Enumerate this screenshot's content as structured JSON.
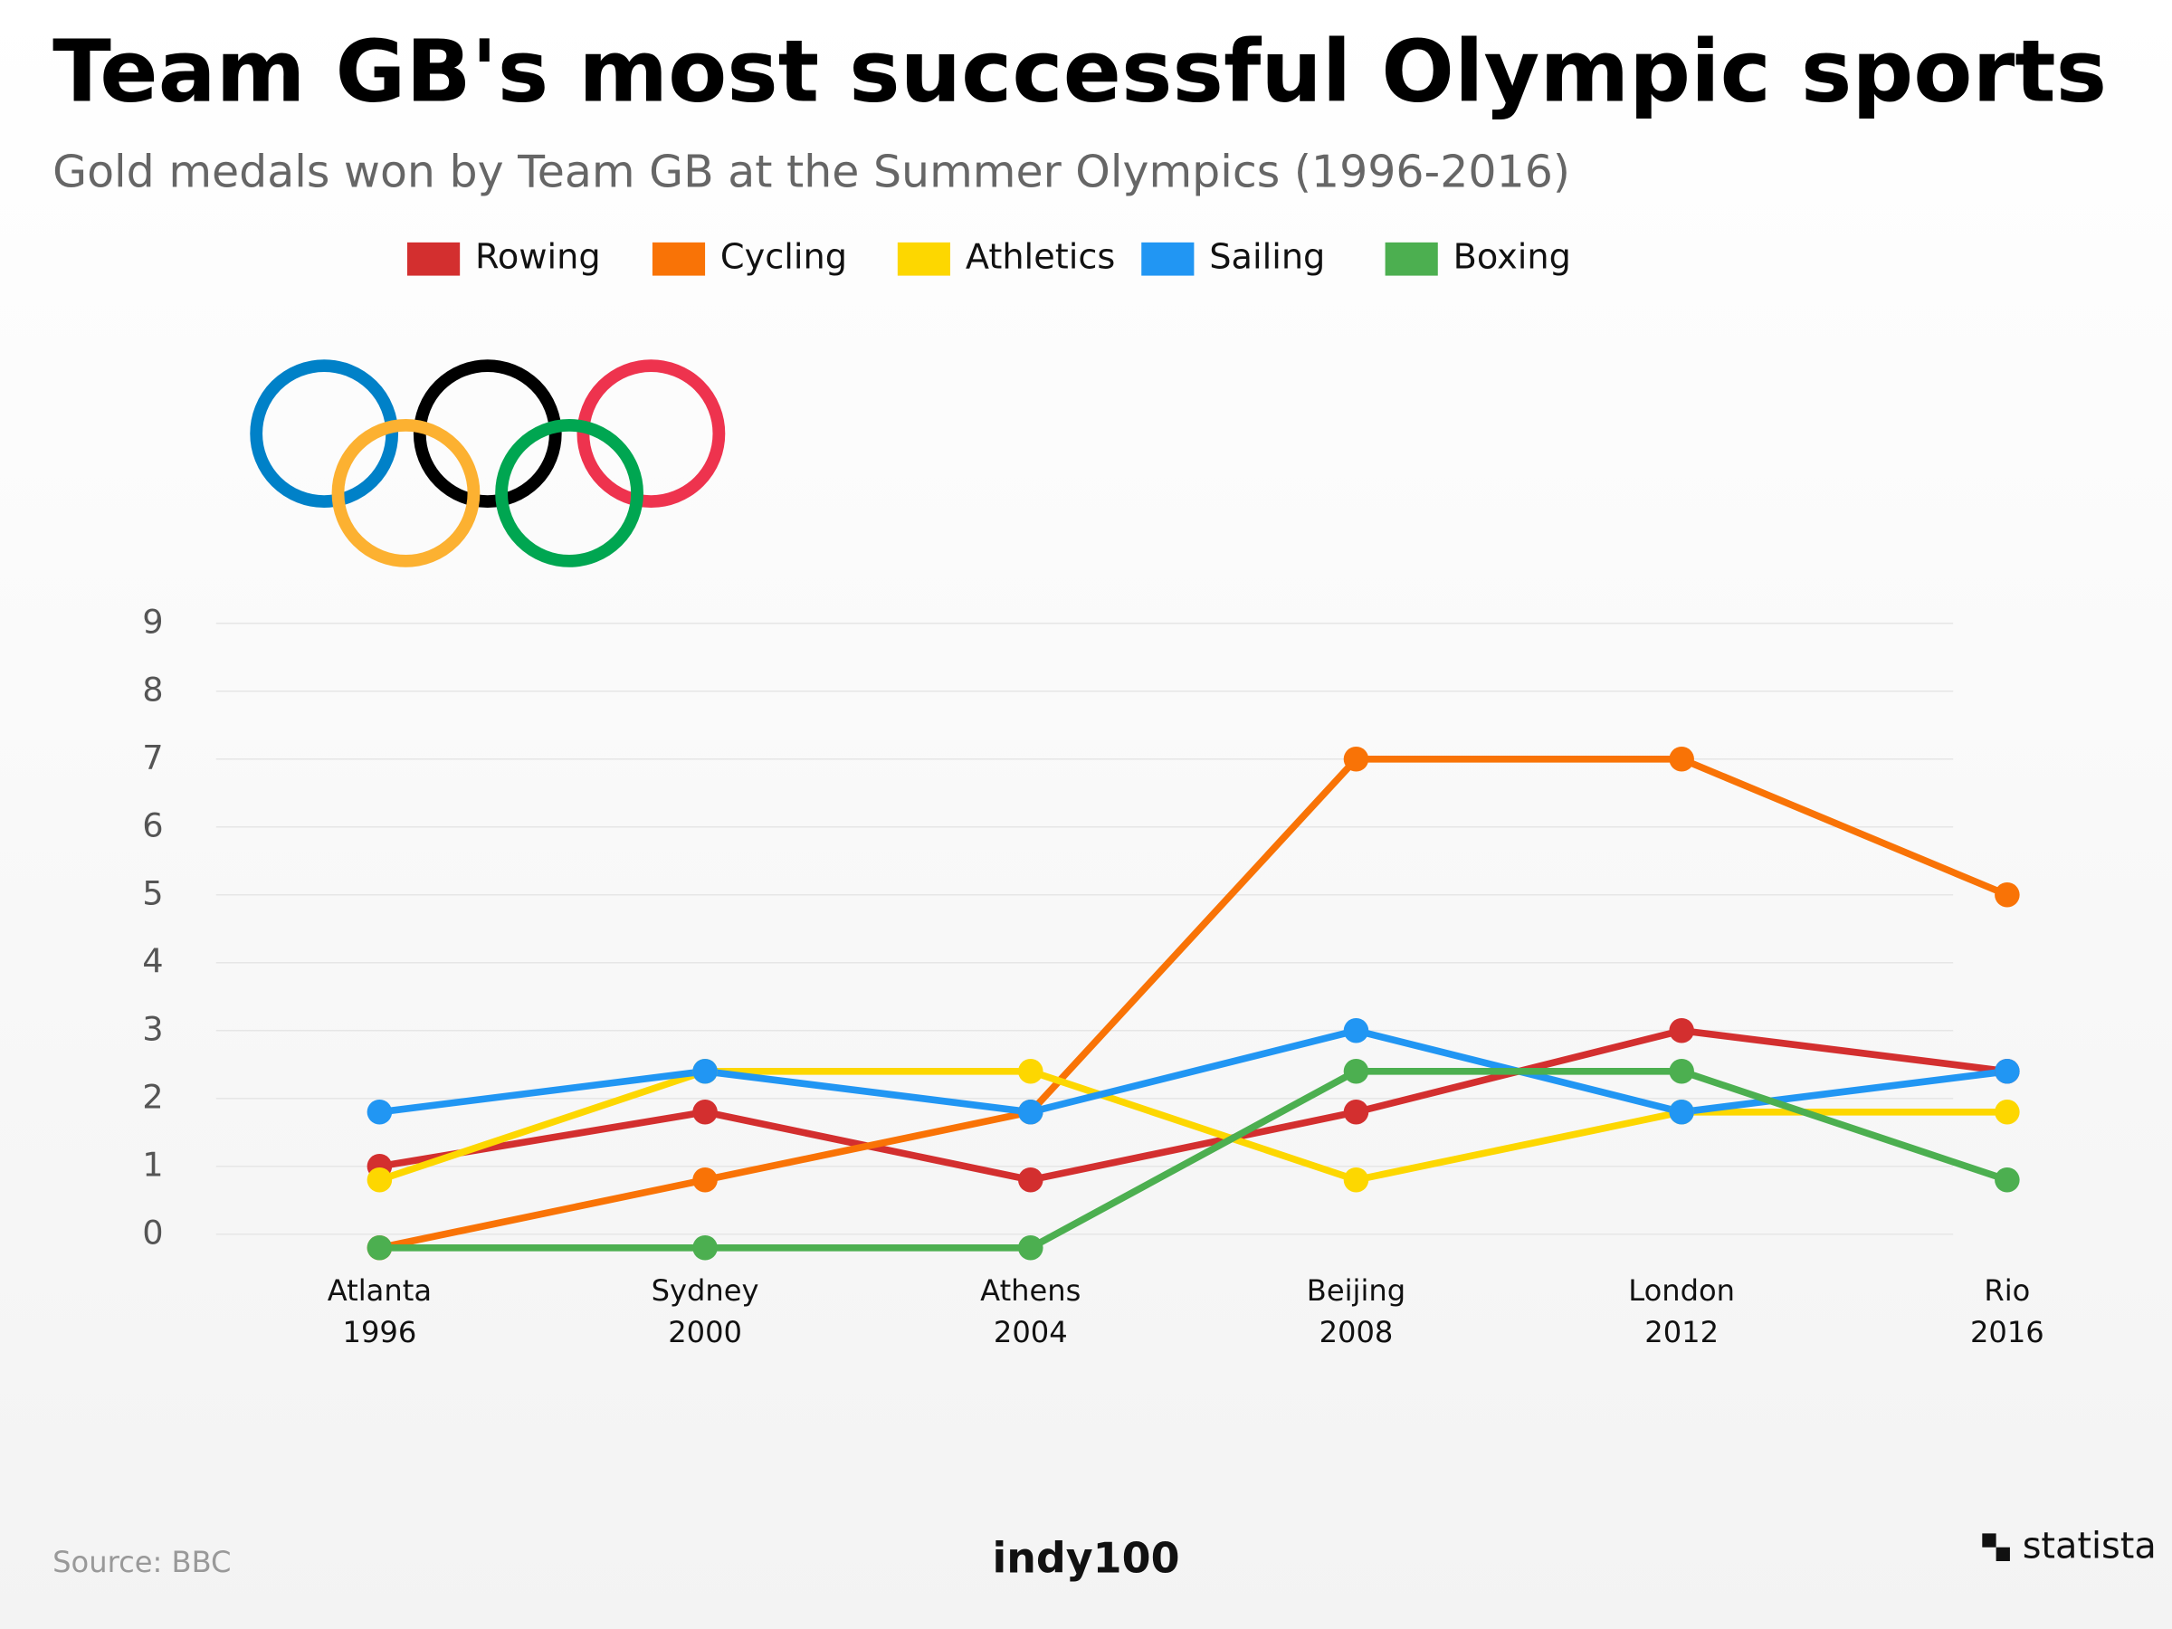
{
  "chart_data": {
    "type": "line",
    "title": "Team GB's most successful Olympic sports",
    "subtitle": "Gold medals won by Team GB at the Summer Olympics (1996-2016)",
    "categories": [
      [
        "Atlanta",
        "1996"
      ],
      [
        "Sydney",
        "2000"
      ],
      [
        "Athens",
        "2004"
      ],
      [
        "Beijing",
        "2008"
      ],
      [
        "London",
        "2012"
      ],
      [
        "Rio",
        "2016"
      ]
    ],
    "series": [
      {
        "name": "Rowing",
        "color": "#d32f2f",
        "values": [
          1.0,
          1.8,
          0.8,
          1.8,
          3.0,
          2.4
        ]
      },
      {
        "name": "Cycling",
        "color": "#f97306",
        "values": [
          -0.2,
          0.8,
          1.8,
          7.0,
          7.0,
          5.0
        ]
      },
      {
        "name": "Athletics",
        "color": "#fdd700",
        "values": [
          0.8,
          2.4,
          2.4,
          0.8,
          1.8,
          1.8
        ]
      },
      {
        "name": "Sailing",
        "color": "#2196f3",
        "values": [
          1.8,
          2.4,
          1.8,
          3.0,
          1.8,
          2.4
        ]
      },
      {
        "name": "Boxing",
        "color": "#4caf50",
        "values": [
          -0.2,
          -0.2,
          -0.2,
          2.4,
          2.4,
          0.8
        ]
      }
    ],
    "ylim": [
      -0.4,
      9
    ],
    "yticks": [
      0,
      1,
      2,
      3,
      4,
      5,
      6,
      7,
      8,
      9
    ],
    "grid": true,
    "legend": "top",
    "source": "Source: BBC",
    "brand": "indy100",
    "logo": "statista"
  }
}
